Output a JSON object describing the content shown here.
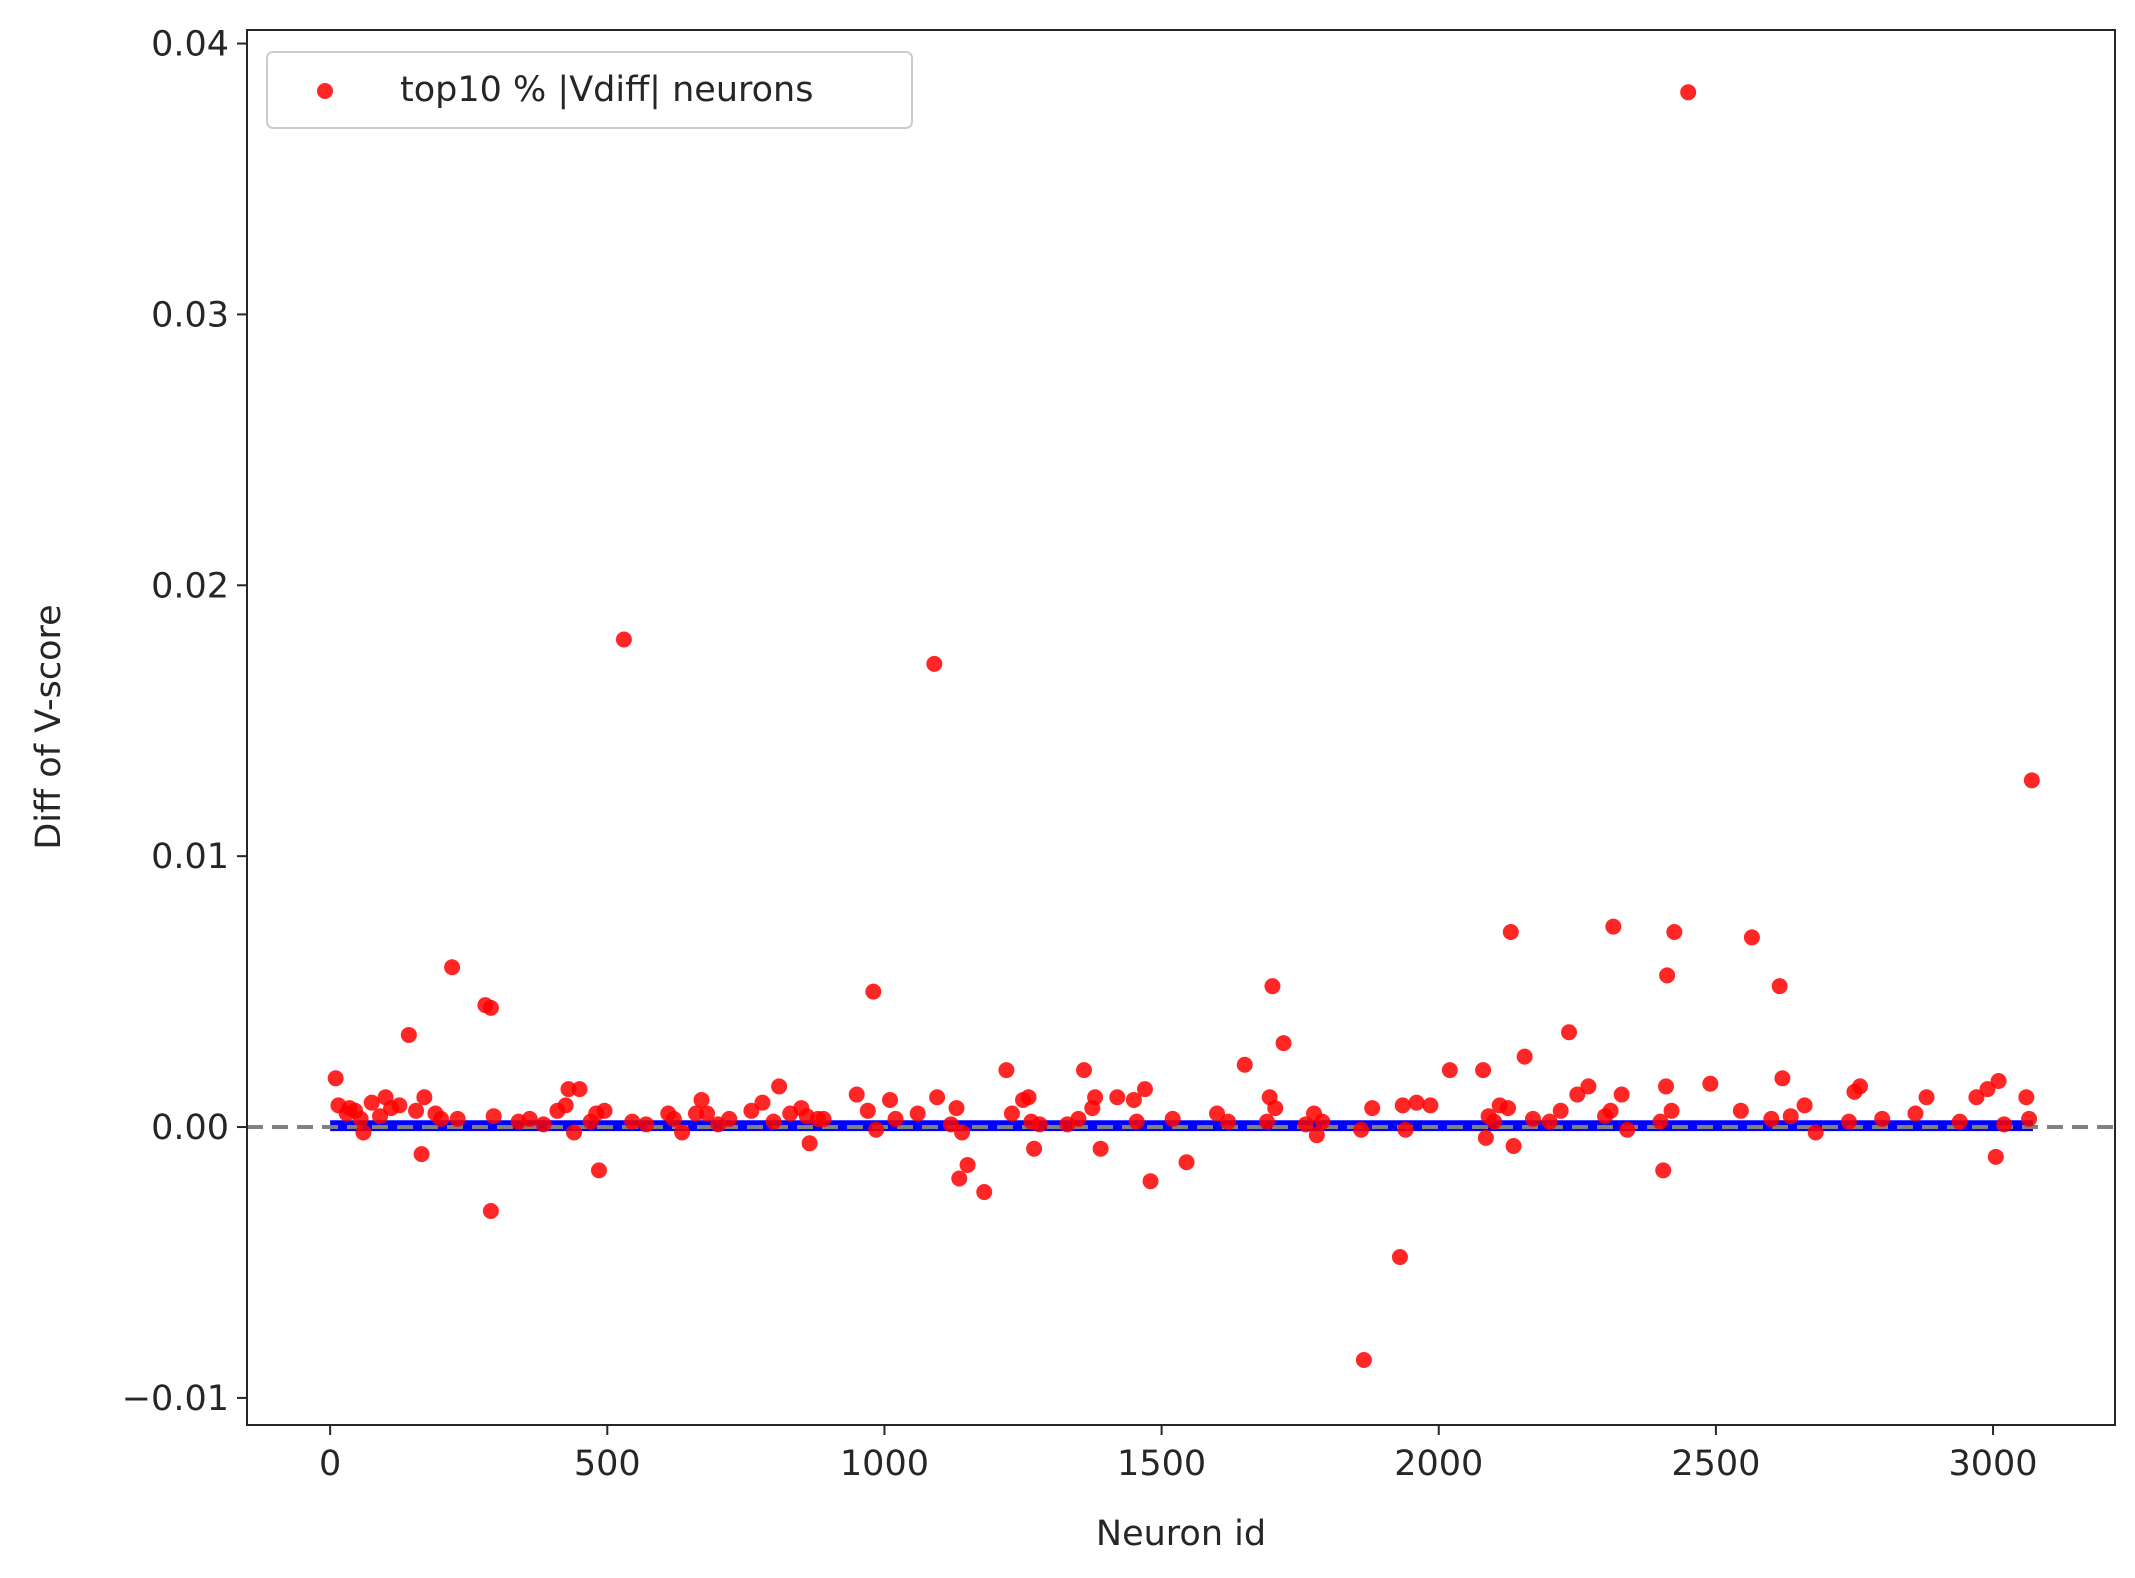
{
  "chart_data": {
    "type": "scatter",
    "xlabel": "Neuron id",
    "ylabel": "Diff of V-score",
    "xlim": [
      -150,
      3220
    ],
    "ylim": [
      -0.011,
      0.0405
    ],
    "xticks": [
      0,
      500,
      1000,
      1500,
      2000,
      2500,
      3000
    ],
    "xtick_labels": [
      "0",
      "500",
      "1000",
      "1500",
      "2000",
      "2500",
      "3000"
    ],
    "yticks": [
      -0.01,
      0.0,
      0.01,
      0.02,
      0.03,
      0.04
    ],
    "ytick_labels": [
      "−0.01",
      "0.00",
      "0.01",
      "0.02",
      "0.03",
      "0.04"
    ],
    "grid": false,
    "legend_position": "top-left",
    "colors": {
      "top_points": "#ff0000",
      "baseline_band": "#0000ff",
      "zero_line": "#808080"
    },
    "zero_line": {
      "y": 0.0,
      "style": "dashed"
    },
    "baseline_band": {
      "x_range": [
        0,
        3072
      ],
      "y_range": [
        -0.00015,
        0.00025
      ]
    },
    "series": [
      {
        "name": "top10 % |Vdiff| neurons",
        "color": "#ff0000",
        "points": [
          [
            10,
            0.0018
          ],
          [
            15,
            0.0008
          ],
          [
            30,
            0.0005
          ],
          [
            35,
            0.0007
          ],
          [
            45,
            0.0006
          ],
          [
            55,
            0.0003
          ],
          [
            60,
            -0.0002
          ],
          [
            75,
            0.0009
          ],
          [
            90,
            0.0004
          ],
          [
            100,
            0.0011
          ],
          [
            110,
            0.0007
          ],
          [
            125,
            0.0008
          ],
          [
            142,
            0.0034
          ],
          [
            155,
            0.0006
          ],
          [
            165,
            -0.001
          ],
          [
            170,
            0.0011
          ],
          [
            190,
            0.0005
          ],
          [
            200,
            0.0003
          ],
          [
            220,
            0.0059
          ],
          [
            230,
            0.0003
          ],
          [
            280,
            0.0045
          ],
          [
            290,
            0.0044
          ],
          [
            290,
            -0.0031
          ],
          [
            295,
            0.0004
          ],
          [
            340,
            0.0002
          ],
          [
            360,
            0.0003
          ],
          [
            385,
            0.0001
          ],
          [
            410,
            0.0006
          ],
          [
            425,
            0.0008
          ],
          [
            430,
            0.0014
          ],
          [
            440,
            -0.0002
          ],
          [
            450,
            0.0014
          ],
          [
            470,
            0.0002
          ],
          [
            480,
            0.0005
          ],
          [
            485,
            -0.0016
          ],
          [
            495,
            0.0006
          ],
          [
            530,
            0.018
          ],
          [
            545,
            0.0002
          ],
          [
            570,
            0.0001
          ],
          [
            610,
            0.0005
          ],
          [
            620,
            0.0003
          ],
          [
            635,
            -0.0002
          ],
          [
            660,
            0.0005
          ],
          [
            670,
            0.001
          ],
          [
            680,
            0.0005
          ],
          [
            700,
            0.0001
          ],
          [
            720,
            0.0003
          ],
          [
            760,
            0.0006
          ],
          [
            780,
            0.0009
          ],
          [
            800,
            0.0002
          ],
          [
            810,
            0.0015
          ],
          [
            830,
            0.0005
          ],
          [
            850,
            0.0007
          ],
          [
            860,
            0.0004
          ],
          [
            865,
            -0.0006
          ],
          [
            880,
            0.0003
          ],
          [
            890,
            0.0003
          ],
          [
            950,
            0.0012
          ],
          [
            970,
            0.0006
          ],
          [
            980,
            0.005
          ],
          [
            985,
            -0.0001
          ],
          [
            1010,
            0.001
          ],
          [
            1020,
            0.0003
          ],
          [
            1060,
            0.0005
          ],
          [
            1090,
            0.0171
          ],
          [
            1095,
            0.0011
          ],
          [
            1120,
            0.0001
          ],
          [
            1130,
            0.0007
          ],
          [
            1135,
            -0.0019
          ],
          [
            1140,
            -0.0002
          ],
          [
            1150,
            -0.0014
          ],
          [
            1180,
            -0.0024
          ],
          [
            1220,
            0.0021
          ],
          [
            1230,
            0.0005
          ],
          [
            1250,
            0.001
          ],
          [
            1260,
            0.0011
          ],
          [
            1265,
            0.0002
          ],
          [
            1270,
            -0.0008
          ],
          [
            1280,
            0.0001
          ],
          [
            1330,
            0.0001
          ],
          [
            1350,
            0.0003
          ],
          [
            1360,
            0.0021
          ],
          [
            1375,
            0.0007
          ],
          [
            1380,
            0.0011
          ],
          [
            1390,
            -0.0008
          ],
          [
            1420,
            0.0011
          ],
          [
            1450,
            0.001
          ],
          [
            1455,
            0.0002
          ],
          [
            1470,
            0.0014
          ],
          [
            1480,
            -0.002
          ],
          [
            1520,
            0.0003
          ],
          [
            1545,
            -0.0013
          ],
          [
            1600,
            0.0005
          ],
          [
            1620,
            0.0002
          ],
          [
            1650,
            0.0023
          ],
          [
            1690,
            0.0002
          ],
          [
            1695,
            0.0011
          ],
          [
            1700,
            0.0052
          ],
          [
            1705,
            0.0007
          ],
          [
            1720,
            0.0031
          ],
          [
            1760,
            0.0001
          ],
          [
            1775,
            0.0005
          ],
          [
            1780,
            -0.0003
          ],
          [
            1790,
            0.0002
          ],
          [
            1860,
            -0.0001
          ],
          [
            1865,
            -0.0086
          ],
          [
            1880,
            0.0007
          ],
          [
            1930,
            -0.0048
          ],
          [
            1935,
            0.0008
          ],
          [
            1940,
            -0.0001
          ],
          [
            1960,
            0.0009
          ],
          [
            1985,
            0.0008
          ],
          [
            2020,
            0.0021
          ],
          [
            2080,
            0.0021
          ],
          [
            2085,
            -0.0004
          ],
          [
            2090,
            0.0004
          ],
          [
            2100,
            0.0002
          ],
          [
            2110,
            0.0008
          ],
          [
            2125,
            0.0007
          ],
          [
            2130,
            0.0072
          ],
          [
            2135,
            -0.0007
          ],
          [
            2155,
            0.0026
          ],
          [
            2170,
            0.0003
          ],
          [
            2200,
            0.0002
          ],
          [
            2220,
            0.0006
          ],
          [
            2235,
            0.0035
          ],
          [
            2250,
            0.0012
          ],
          [
            2270,
            0.0015
          ],
          [
            2300,
            0.0004
          ],
          [
            2310,
            0.0006
          ],
          [
            2315,
            0.0074
          ],
          [
            2330,
            0.0012
          ],
          [
            2340,
            -0.0001
          ],
          [
            2400,
            0.0002
          ],
          [
            2405,
            -0.0016
          ],
          [
            2410,
            0.0015
          ],
          [
            2412,
            0.0056
          ],
          [
            2420,
            0.0006
          ],
          [
            2425,
            0.0072
          ],
          [
            2450,
            0.0382
          ],
          [
            2490,
            0.0016
          ],
          [
            2545,
            0.0006
          ],
          [
            2565,
            0.007
          ],
          [
            2600,
            0.0003
          ],
          [
            2615,
            0.0052
          ],
          [
            2620,
            0.0018
          ],
          [
            2635,
            0.0004
          ],
          [
            2660,
            0.0008
          ],
          [
            2680,
            -0.0002
          ],
          [
            2740,
            0.0002
          ],
          [
            2750,
            0.0013
          ],
          [
            2760,
            0.0015
          ],
          [
            2800,
            0.0003
          ],
          [
            2860,
            0.0005
          ],
          [
            2880,
            0.0011
          ],
          [
            2940,
            0.0002
          ],
          [
            2970,
            0.0011
          ],
          [
            2990,
            0.0014
          ],
          [
            3005,
            -0.0011
          ],
          [
            3010,
            0.0017
          ],
          [
            3020,
            0.0001
          ],
          [
            3060,
            0.0011
          ],
          [
            3065,
            0.0003
          ],
          [
            3070,
            0.0128
          ]
        ]
      }
    ]
  }
}
